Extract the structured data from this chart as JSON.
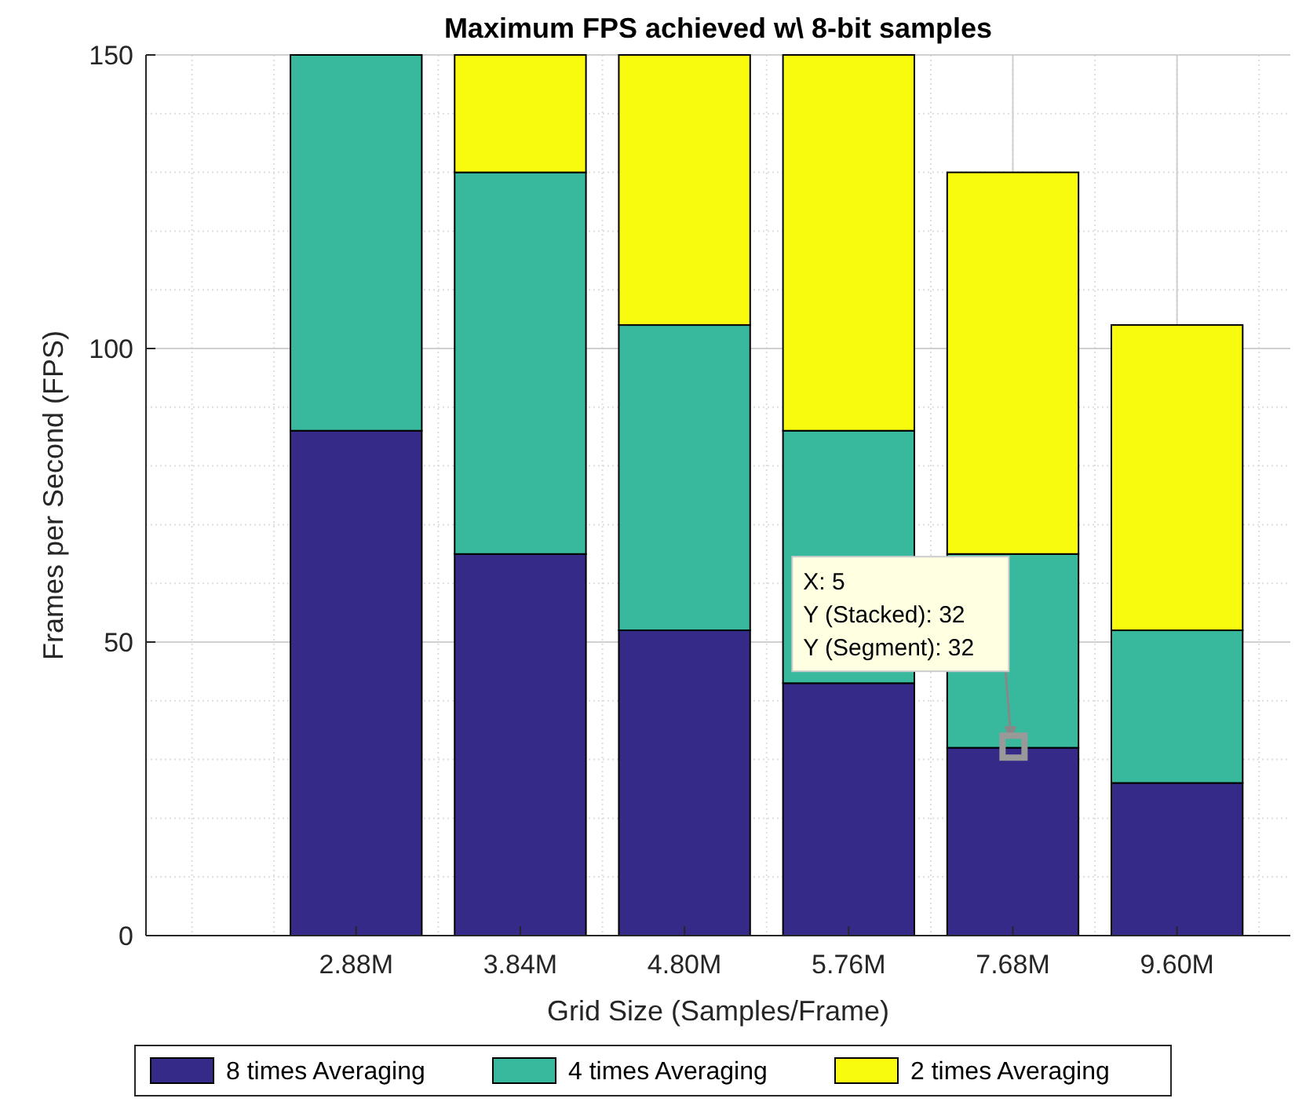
{
  "chart_data": {
    "type": "bar",
    "title": "Maximum FPS achieved w\\ 8-bit samples",
    "xlabel": "Grid Size (Samples/Frame)",
    "ylabel": "Frames per Second (FPS)",
    "categories": [
      "2.88M",
      "3.84M",
      "4.80M",
      "5.76M",
      "7.68M",
      "9.60M"
    ],
    "stacked": true,
    "series": [
      {
        "name": "8 times Averaging",
        "color": "#352a87",
        "values": [
          86,
          65,
          52,
          43,
          32,
          26
        ]
      },
      {
        "name": "4 times Averaging",
        "color": "#38b99e",
        "values": [
          64,
          65,
          52,
          43,
          33,
          26
        ]
      },
      {
        "name": "2 times Averaging",
        "color": "#f9fb0e",
        "values": [
          null,
          20,
          46,
          64,
          65,
          52
        ]
      }
    ],
    "ylim": [
      0,
      150
    ],
    "yticks": [
      0,
      50,
      100,
      150
    ],
    "grid": true,
    "legend": "bottom",
    "annotations": [
      "X: 5\nY (Stacked): 32\nY (Segment): 32"
    ]
  }
}
